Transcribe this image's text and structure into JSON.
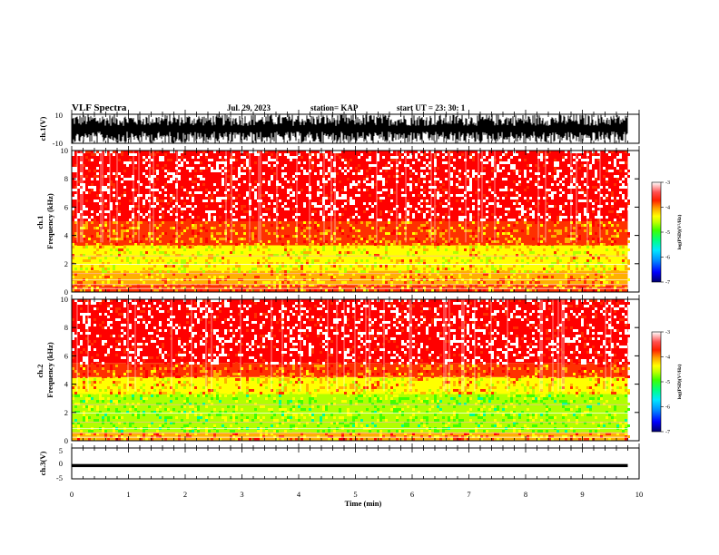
{
  "header": {
    "title": "VLF Spectra",
    "date": "Jul. 29, 2023",
    "station": "station= KAP",
    "start": "start UT =  23: 30: 1"
  },
  "colors": {
    "colormap": [
      "#00006e",
      "#0000ff",
      "#0090ff",
      "#00d0ff",
      "#00ff90",
      "#40ff00",
      "#b0ff00",
      "#ffff00",
      "#ffb000",
      "#ff3000",
      "#ff0000",
      "#ffffff"
    ]
  },
  "chart_data": [
    {
      "type": "line",
      "panel": "ch1-waveform",
      "ylabel": "ch.1(V)",
      "yticks": [
        "10",
        "-10"
      ],
      "ylim": [
        -10,
        10
      ],
      "description_values": {
        "x_range_min": [
          0,
          9.8
        ],
        "amplitude_V": [
          -10,
          10
        ],
        "note": "dense signal saturating between -10 and 10 V"
      }
    },
    {
      "type": "heatmap",
      "panel": "ch1-spectrogram",
      "ylabel": "ch.1\nFrequency (kHz)",
      "yticks": [
        "0",
        "2",
        "4",
        "6",
        "8",
        "10"
      ],
      "ylim": [
        0,
        10
      ],
      "xlim": [
        0,
        9.8
      ],
      "colorbar": {
        "label": "log(PSD)(V²/Hz)",
        "ticks": [
          "-3",
          "-4",
          "-5",
          "-6",
          "-7"
        ],
        "range": [
          -7,
          -3
        ]
      },
      "band_levels": [
        {
          "freq_kHz": [
            0,
            0.5
          ],
          "logPSD": -3.9
        },
        {
          "freq_kHz": [
            0.5,
            1.5
          ],
          "logPSD": -4.1
        },
        {
          "freq_kHz": [
            1.5,
            3.3
          ],
          "logPSD": -4.4
        },
        {
          "freq_kHz": [
            3.3,
            5.0
          ],
          "logPSD": -3.9
        },
        {
          "freq_kHz": [
            5.0,
            10.0
          ],
          "logPSD": -3.2
        }
      ]
    },
    {
      "type": "heatmap",
      "panel": "ch2-spectrogram",
      "ylabel": "ch.2\nFrequency (kHz)",
      "yticks": [
        "0",
        "2",
        "4",
        "6",
        "8",
        "10"
      ],
      "ylim": [
        0,
        10
      ],
      "xlim": [
        0,
        9.8
      ],
      "colorbar": {
        "label": "log(PSD)(V²/Hz)",
        "ticks": [
          "-3",
          "-4",
          "-5",
          "-6",
          "-7"
        ],
        "range": [
          -7,
          -3
        ]
      },
      "band_levels": [
        {
          "freq_kHz": [
            0,
            0.6
          ],
          "logPSD": -4.0
        },
        {
          "freq_kHz": [
            0.6,
            3.3
          ],
          "logPSD": -4.9
        },
        {
          "freq_kHz": [
            3.3,
            4.5
          ],
          "logPSD": -4.3
        },
        {
          "freq_kHz": [
            4.5,
            5.5
          ],
          "logPSD": -3.8
        },
        {
          "freq_kHz": [
            5.5,
            10.0
          ],
          "logPSD": -3.2
        }
      ]
    },
    {
      "type": "line",
      "panel": "ch3-waveform",
      "ylabel": "ch.3(V)",
      "yticks": [
        "5",
        "0",
        "-5"
      ],
      "ylim": [
        -5,
        5
      ],
      "description_values": {
        "x_range_min": [
          0,
          9.8
        ],
        "amplitude_V": [
          -1.2,
          -0.2
        ]
      }
    }
  ],
  "xaxis": {
    "label": "Time (min)",
    "ticks": [
      "0",
      "1",
      "2",
      "3",
      "4",
      "5",
      "6",
      "7",
      "8",
      "9",
      "10"
    ],
    "range": [
      0,
      10
    ]
  }
}
